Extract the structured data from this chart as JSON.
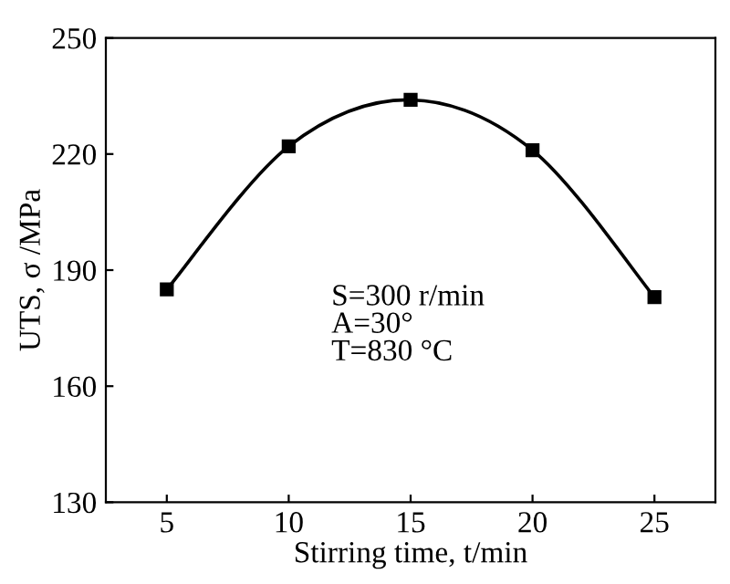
{
  "chart_data": {
    "type": "line",
    "xlabel": "Stirring time, t/min",
    "ylabel": "UTS, σ /MPa",
    "x": [
      5,
      10,
      15,
      20,
      25
    ],
    "series": [
      {
        "color": "#000000",
        "values": [
          185,
          222,
          234,
          221,
          183
        ]
      }
    ],
    "xlim": [
      2.5,
      27.5
    ],
    "xticks": [
      5,
      10,
      15,
      20,
      25
    ],
    "ylim": [
      130,
      250
    ],
    "yticks": [
      130,
      160,
      190,
      220,
      250
    ],
    "marker": "square",
    "line_style": "solid",
    "grid": false,
    "legend": false,
    "annotations": [
      "S=300 r/min\nA=30°\nT=830 °C"
    ]
  }
}
